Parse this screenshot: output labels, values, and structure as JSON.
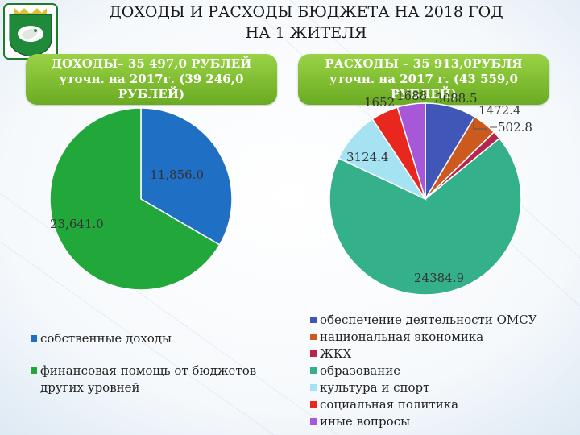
{
  "header": {
    "title_line1": "ДОХОДЫ И РАСХОДЫ БЮДЖЕТА НА 2018 ГОД",
    "title_line2": "НА 1 ЖИТЕЛЯ"
  },
  "income_box": {
    "line1": "ДОХОДЫ– 35 497,0 РУБЛЕЙ",
    "line2": "уточн. на 2017г. (39 246,0 РУБЛЕЙ)"
  },
  "expense_box": {
    "line1": "РАСХОДЫ – 35 913,0РУБЛЯ",
    "line2": "уточн. на 2017 г. (43 559,0 РУБЛЕЙ)"
  },
  "chart_data": [
    {
      "type": "pie",
      "series": [
        {
          "name": "собственные доходы",
          "value": 11856.0,
          "label": "11,856.0",
          "color": "#1f6fc5"
        },
        {
          "name": "финансовая помощь от бюджетов других уровней",
          "value": 23641.0,
          "label": "23,641.0",
          "color": "#22a83a"
        }
      ],
      "legend_position": "bottom"
    },
    {
      "type": "pie",
      "series": [
        {
          "name": "обеспечение деятельности ОМСУ",
          "value": 3088.5,
          "label": "3088.5",
          "color": "#4157b8"
        },
        {
          "name": "национальная экономика",
          "value": 1472.4,
          "label": "1472.4",
          "color": "#cc5a1e"
        },
        {
          "name": "ЖКХ",
          "value": 502.8,
          "label": "502.8",
          "color": "#b8244e"
        },
        {
          "name": "образование",
          "value": 24384.9,
          "label": "24384.9",
          "color": "#34b08a"
        },
        {
          "name": "культура и спорт",
          "value": 3124.4,
          "label": "3124.4",
          "color": "#a6e3f2"
        },
        {
          "name": "социальная политика",
          "value": 1652,
          "label": "1652",
          "color": "#e8271f"
        },
        {
          "name": "иные вопросы",
          "value": 1688,
          "label": "1688",
          "color": "#a658d8"
        }
      ],
      "legend_position": "bottom"
    }
  ]
}
